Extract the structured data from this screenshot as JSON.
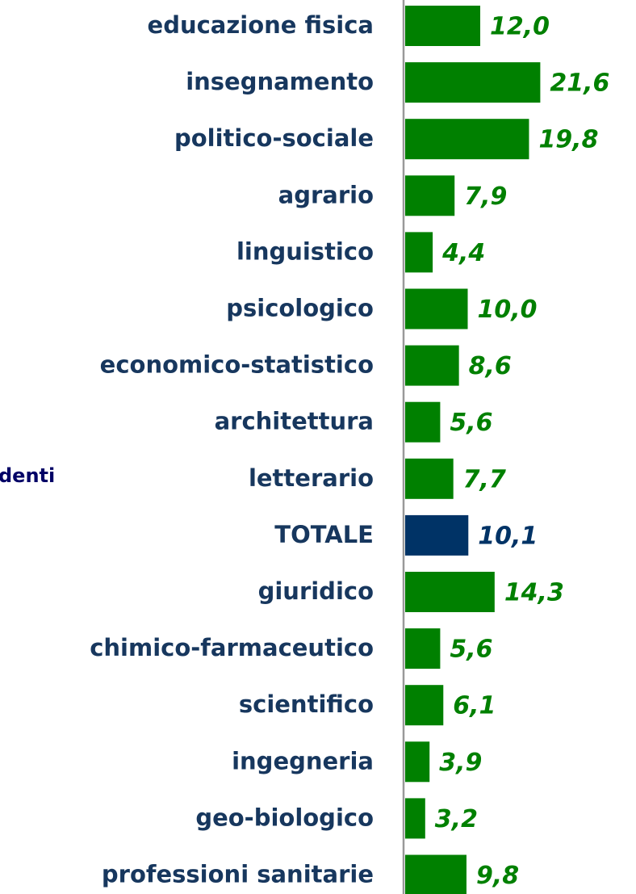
{
  "chart_data": {
    "type": "bar",
    "orientation": "horizontal",
    "annotation": "denti",
    "categories": [
      "educazione fisica",
      "insegnamento",
      "politico-sociale",
      "agrario",
      "linguistico",
      "psicologico",
      "economico-statistico",
      "architettura",
      "letterario",
      "TOTALE",
      "giuridico",
      "chimico-farmaceutico",
      "scientifico",
      "ingegneria",
      "geo-biologico",
      "professioni sanitarie"
    ],
    "values": [
      12.0,
      21.6,
      19.8,
      7.9,
      4.4,
      10.0,
      8.6,
      5.6,
      7.7,
      10.1,
      14.3,
      5.6,
      6.1,
      3.9,
      3.2,
      9.8
    ],
    "value_labels": [
      "12,0",
      "21,6",
      "19,8",
      "7,9",
      "4,4",
      "10,0",
      "8,6",
      "5,6",
      "7,7",
      "10,1",
      "14,3",
      "5,6",
      "6,1",
      "3,9",
      "3,2",
      "9,8"
    ],
    "colors": [
      "#008000",
      "#008000",
      "#008000",
      "#008000",
      "#008000",
      "#008000",
      "#008000",
      "#008000",
      "#008000",
      "#003366",
      "#008000",
      "#008000",
      "#008000",
      "#008000",
      "#008000",
      "#008000"
    ]
  }
}
